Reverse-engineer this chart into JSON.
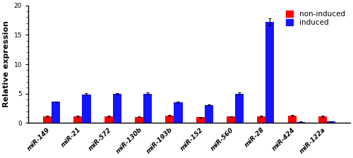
{
  "categories": [
    "miR-149",
    "miR-21",
    "miR-572",
    "miR-130b",
    "miR-193b",
    "miR-152",
    "miR-560",
    "miR-28",
    "miR-424",
    "miR-122a"
  ],
  "non_induced": [
    1.15,
    1.15,
    1.1,
    1.05,
    1.3,
    0.98,
    1.08,
    1.12,
    1.2,
    1.1
  ],
  "induced": [
    3.6,
    4.9,
    5.0,
    5.0,
    3.5,
    3.1,
    5.0,
    17.2,
    0.2,
    0.25
  ],
  "non_induced_err": [
    0.15,
    0.12,
    0.12,
    0.1,
    0.1,
    0.07,
    0.08,
    0.1,
    0.12,
    0.1
  ],
  "induced_err": [
    0.08,
    0.18,
    0.12,
    0.15,
    0.1,
    0.08,
    0.18,
    0.6,
    0.03,
    0.04
  ],
  "bar_color_red": "#FF0000",
  "bar_color_blue": "#1414FF",
  "ylabel": "Relative expression",
  "ylim": [
    0,
    20
  ],
  "yticks": [
    0,
    5,
    10,
    15,
    20
  ],
  "legend_labels": [
    "non-induced",
    "induced"
  ],
  "bar_width": 0.28,
  "background_color": "#ffffff",
  "tick_label_fontsize": 6.5,
  "ylabel_fontsize": 8,
  "legend_fontsize": 7.5
}
